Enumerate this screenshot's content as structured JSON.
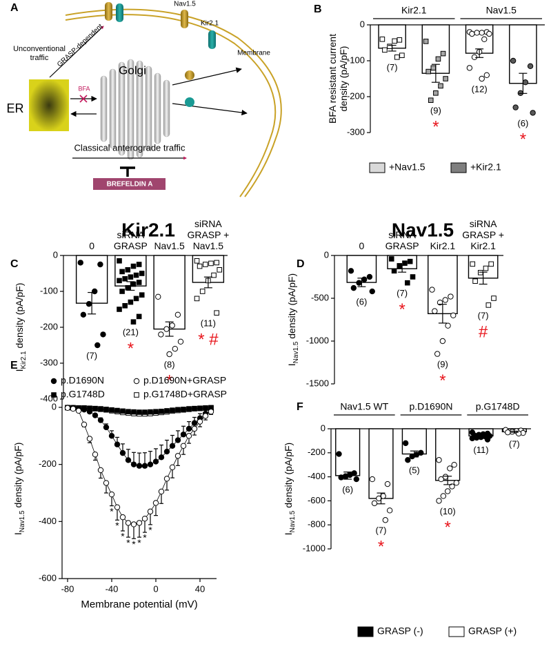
{
  "diagram": {
    "label": "A",
    "labels": {
      "nav": "Nav1.5",
      "kir": "Kir2.1",
      "membrane": "Membrane",
      "unconventional": "Unconventional\ntraffic",
      "grasp": "GRASP-dependent",
      "golgi": "Golgi",
      "er": "ER",
      "bfa": "BFA",
      "classical": "Classical anterograde traffic",
      "brefeldin": "BREFELDIN A"
    }
  },
  "chart_data": [
    {
      "type": "bar",
      "label": "B",
      "ylabel": "BFA resistant current\ndensity (pA/pF)",
      "groups": [
        {
          "label": "Kir2.1",
          "bars": [
            0,
            1
          ]
        },
        {
          "label": "Nav1.5",
          "bars": [
            2,
            3
          ]
        }
      ],
      "values": [
        -65,
        -135,
        -79,
        -163
      ],
      "errors": [
        8,
        25,
        12,
        28
      ],
      "points": [
        [
          -40,
          -42,
          -45,
          -60,
          -70,
          -85,
          -90
        ],
        [
          -46,
          -80,
          -95,
          -120,
          -130,
          -150,
          -170,
          -190,
          -210
        ],
        [
          -20,
          -20,
          -22,
          -22,
          -25,
          -25,
          -40,
          -75,
          -90,
          -120,
          -140,
          -150
        ],
        [
          -100,
          -115,
          -160,
          -190,
          -230,
          -245
        ]
      ],
      "point_shape": [
        "square",
        "square",
        "circle",
        "circle"
      ],
      "point_color": [
        "#ffffff",
        "#a6a6a6",
        "#ffffff",
        "#595959"
      ],
      "n_labels": [
        "(7)",
        "(9)",
        "(12)",
        "(6)"
      ],
      "markers": [
        null,
        "*",
        null,
        "*"
      ],
      "marker_color": "#e8141b",
      "bar_color": "#ffffff",
      "ylim": [
        -300,
        0
      ],
      "yticks": [
        0,
        -100,
        -200,
        -300
      ],
      "legend": [
        {
          "name": "+Nav1.5",
          "color": "#d9d9d9"
        },
        {
          "name": "+Kir2.1",
          "color": "#7f7f7f"
        }
      ]
    },
    {
      "type": "bar",
      "label": "C",
      "title": "Kir2.1",
      "ylabel": [
        "I",
        "Kir2.1",
        " density (pA/pF)"
      ],
      "categories": [
        "0",
        "siRNA\nGRASP",
        "Nav1.5",
        "siRNA\nGRASP +\nNav1.5"
      ],
      "values": [
        -133,
        -85,
        -205,
        -75
      ],
      "errors": [
        30,
        12,
        20,
        15
      ],
      "points": [
        [
          -20,
          -25,
          -100,
          -135,
          -165,
          -220,
          -250
        ],
        [
          -15,
          -25,
          -30,
          -40,
          -45,
          -50,
          -55,
          -60,
          -65,
          -70,
          -75,
          -80,
          -90,
          -100,
          -110,
          -120,
          -130,
          -140,
          -150,
          -170,
          -185
        ],
        [
          -115,
          -165,
          -195,
          -205,
          -220,
          -240,
          -260,
          -275
        ],
        [
          -15,
          -20,
          -22,
          -25,
          -30,
          -40,
          -55,
          -70,
          -100,
          -120,
          -160
        ]
      ],
      "point_shape": [
        "circle",
        "square",
        "circle",
        "square"
      ],
      "point_color": [
        "#000000",
        "#000000",
        "#ffffff",
        "#ffffff"
      ],
      "n_labels": [
        "(7)",
        "(21)",
        "(8)",
        "(11)"
      ],
      "markers": [
        null,
        "*",
        "*",
        "* #"
      ],
      "marker_color": "#e8141b",
      "bar_color": "#ffffff",
      "ylim": [
        -400,
        0
      ],
      "yticks": [
        0,
        -100,
        -200,
        -300,
        -400
      ]
    },
    {
      "type": "bar",
      "label": "D",
      "title": "Nav1.5",
      "ylabel": [
        "I",
        "Nav1.5",
        " density (pA/pF)"
      ],
      "categories": [
        "0",
        "siRNA\nGRASP",
        "Kir2.1",
        "siRNA\nGRASP +\nKir2.1"
      ],
      "values": [
        -315,
        -155,
        -680,
        -265
      ],
      "errors": [
        50,
        40,
        110,
        70
      ],
      "points": [
        [
          -180,
          -250,
          -280,
          -320,
          -380,
          -420
        ],
        [
          -40,
          -70,
          -90,
          -120,
          -180,
          -250,
          -320
        ],
        [
          -400,
          -480,
          -520,
          -550,
          -650,
          -700,
          -820,
          -1000,
          -1150
        ],
        [
          -100,
          -100,
          -150,
          -200,
          -300,
          -500,
          -580
        ]
      ],
      "point_shape": [
        "circle",
        "square",
        "circle",
        "square"
      ],
      "point_color": [
        "#000000",
        "#000000",
        "#ffffff",
        "#ffffff"
      ],
      "n_labels": [
        "(6)",
        "(7)",
        "(9)",
        "(7)"
      ],
      "markers": [
        null,
        "*",
        "*",
        "#"
      ],
      "marker_color": "#e8141b",
      "bar_color": "#ffffff",
      "ylim": [
        -1500,
        0
      ],
      "yticks": [
        0,
        -500,
        -1000,
        -1500
      ]
    },
    {
      "type": "line",
      "label": "E",
      "ylabel": [
        "I",
        "Nav1.5",
        " density  (pA/pF)"
      ],
      "xlabel": "Membrane potential (mV)",
      "x": [
        -80,
        -75,
        -70,
        -65,
        -60,
        -55,
        -50,
        -45,
        -40,
        -35,
        -30,
        -25,
        -20,
        -15,
        -10,
        -5,
        0,
        5,
        10,
        15,
        20,
        25,
        30,
        35,
        40,
        45,
        50
      ],
      "xlim": [
        -85,
        55
      ],
      "xticks": [
        -80,
        -40,
        0,
        40
      ],
      "ylim": [
        -600,
        30
      ],
      "yticks": [
        0,
        -200,
        -400,
        -600
      ],
      "series": [
        {
          "name": "p.D1690N",
          "marker": "circle",
          "fill": "#000000",
          "error_direction": "up",
          "values": [
            -1,
            -2,
            -4,
            -8,
            -15,
            -28,
            -45,
            -70,
            -100,
            -130,
            -160,
            -185,
            -200,
            -205,
            -205,
            -200,
            -190,
            -175,
            -155,
            -135,
            -115,
            -95,
            -75,
            -55,
            -38,
            -22,
            -10
          ],
          "errors": [
            1,
            1,
            1,
            2,
            3,
            5,
            8,
            12,
            18,
            25,
            32,
            38,
            42,
            45,
            46,
            46,
            45,
            43,
            40,
            37,
            33,
            29,
            25,
            20,
            16,
            12,
            8
          ]
        },
        {
          "name": "p.D1690N+GRASP",
          "marker": "circle",
          "fill": "#ffffff",
          "error_direction": "down",
          "values": [
            -2,
            -5,
            -12,
            -60,
            -110,
            -165,
            -220,
            -265,
            -305,
            -350,
            -385,
            -405,
            -410,
            -405,
            -390,
            -365,
            -335,
            -295,
            -250,
            -210,
            -170,
            -135,
            -100,
            -75,
            -50,
            -30,
            -15
          ],
          "errors": [
            1,
            2,
            4,
            8,
            14,
            20,
            28,
            35,
            40,
            45,
            48,
            50,
            50,
            50,
            48,
            46,
            44,
            42,
            40,
            37,
            34,
            30,
            26,
            22,
            18,
            14,
            10
          ]
        },
        {
          "name": "p.G1748D",
          "marker": "square",
          "fill": "#000000",
          "values": [
            -1,
            -1,
            -2,
            -2,
            -3,
            -4,
            -5,
            -7,
            -9,
            -11,
            -13,
            -15,
            -16,
            -17,
            -17,
            -16,
            -15,
            -14,
            -12,
            -10,
            -8,
            -7,
            -5,
            -4,
            -3,
            -2,
            -1
          ]
        },
        {
          "name": "p.G1748D+GRASP",
          "marker": "square",
          "fill": "#ffffff",
          "values": [
            -1,
            -2,
            -2,
            -3,
            -4,
            -5,
            -7,
            -9,
            -12,
            -15,
            -18,
            -20,
            -22,
            -23,
            -23,
            -22,
            -20,
            -18,
            -16,
            -13,
            -11,
            -9,
            -7,
            -5,
            -4,
            -3,
            -2
          ]
        }
      ],
      "annotations": {
        "label": "*",
        "x": [
          -40,
          -35,
          -30,
          -25,
          -20,
          -15,
          -10,
          -5
        ]
      }
    },
    {
      "type": "bar",
      "label": "F",
      "ylabel": [
        "I",
        "Nav1.5",
        " density (pA/pF)"
      ],
      "groups": [
        {
          "label": "Nav1.5 WT",
          "bars": [
            0,
            1
          ]
        },
        {
          "label": "p.D1690N",
          "bars": [
            2,
            3
          ]
        },
        {
          "label": "p.G1748D",
          "bars": [
            4,
            5
          ]
        }
      ],
      "values": [
        -390,
        -580,
        -210,
        -430,
        -60,
        -25
      ],
      "errors": [
        30,
        45,
        25,
        35,
        8,
        5
      ],
      "points": [
        [
          -210,
          -370,
          -385,
          -395,
          -405,
          -420
        ],
        [
          -420,
          -460,
          -560,
          -580,
          -620,
          -680,
          -760
        ],
        [
          -120,
          -200,
          -215,
          -230,
          -260
        ],
        [
          -260,
          -300,
          -330,
          -400,
          -420,
          -450,
          -480,
          -520,
          -560,
          -600
        ],
        [
          -30,
          -40,
          -45,
          -50,
          -55,
          -60,
          -65,
          -70,
          -75,
          -80,
          -90
        ],
        [
          -10,
          -15,
          -20,
          -25,
          -30,
          -35,
          -40
        ]
      ],
      "point_shape": [
        "circle",
        "circle",
        "circle",
        "circle",
        "circle",
        "circle"
      ],
      "point_color": [
        "#000000",
        "#ffffff",
        "#000000",
        "#ffffff",
        "#000000",
        "#ffffff"
      ],
      "n_labels": [
        "(6)",
        "(7)",
        "(5)",
        "(10)",
        "(11)",
        "(7)"
      ],
      "markers": [
        null,
        "*",
        null,
        "*",
        null,
        null
      ],
      "marker_color": "#e8141b",
      "bar_color": "#ffffff",
      "ylim": [
        -1000,
        0
      ],
      "yticks": [
        0,
        -200,
        -400,
        -600,
        -800,
        -1000
      ],
      "legend": [
        {
          "name": "GRASP (-)",
          "color": "#000000"
        },
        {
          "name": "GRASP (+)",
          "color": "#ffffff"
        }
      ]
    }
  ]
}
